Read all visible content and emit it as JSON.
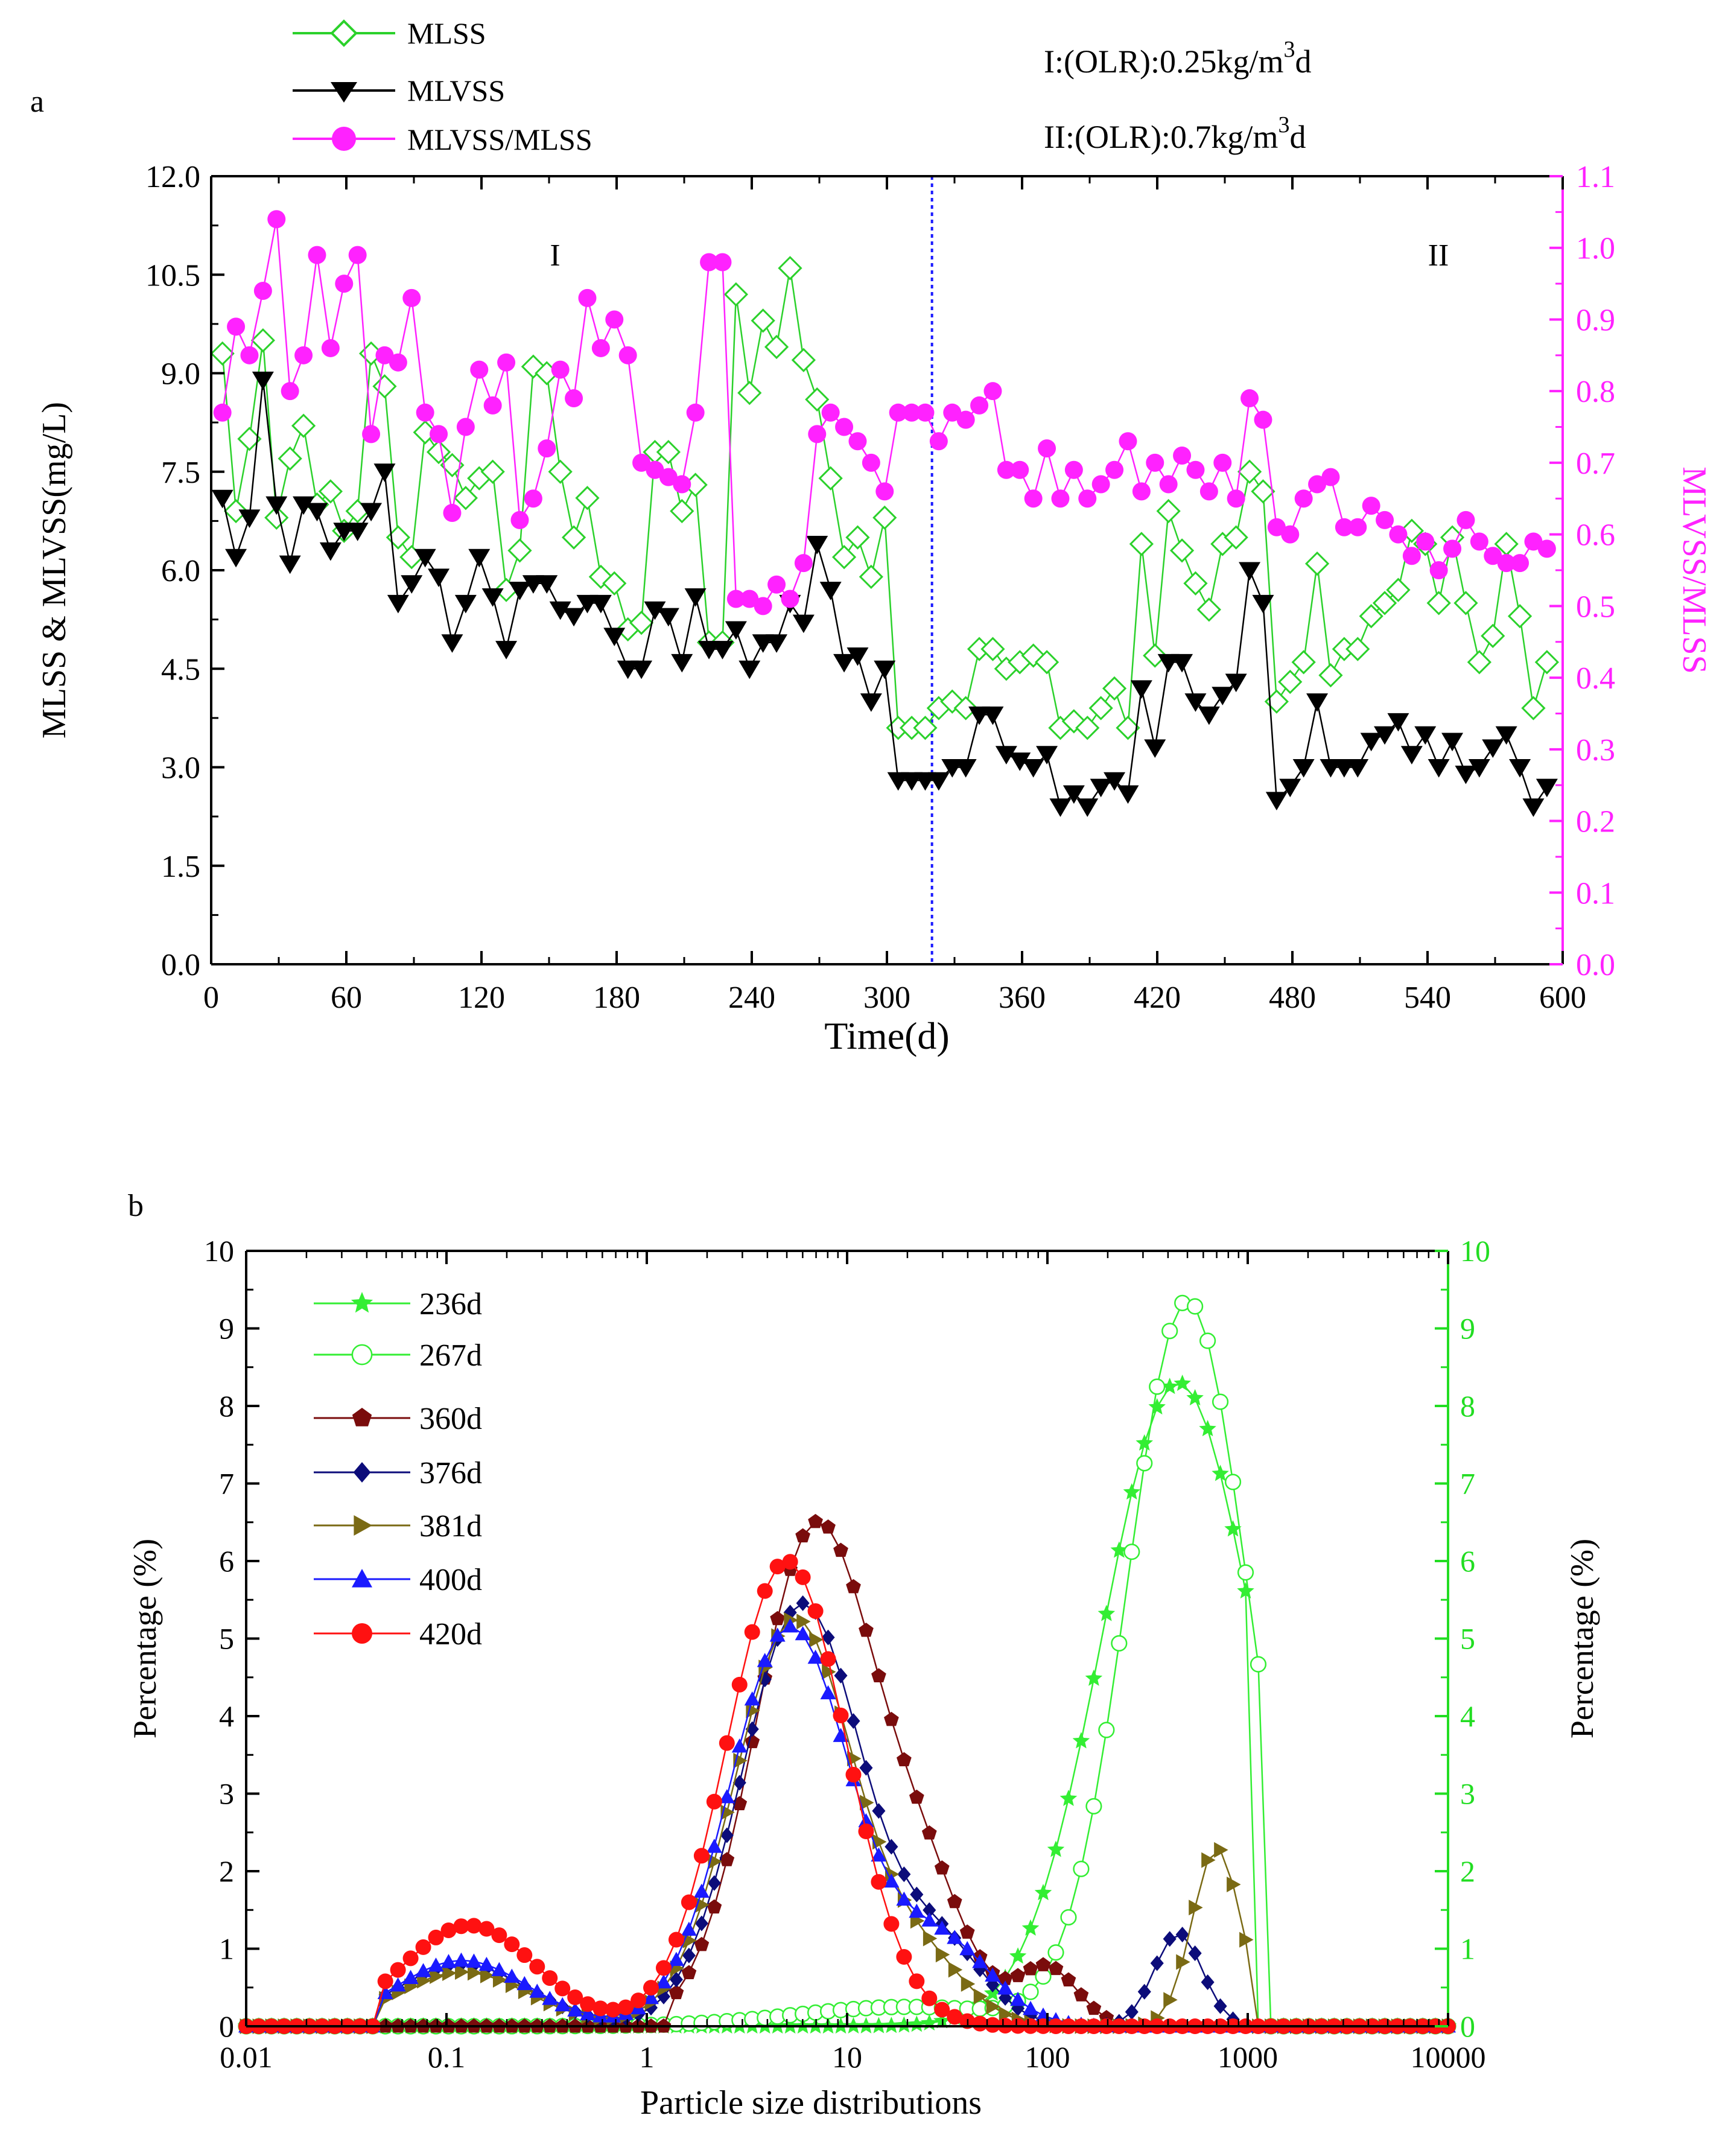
{
  "colors": {
    "mlss": "#2bd12b",
    "mlvss": "#000000",
    "ratio": "#ff22ff",
    "divider": "#1a1aff",
    "right_axis_b": "#22dd22",
    "d236": "#33ee33",
    "d267": "#33ee33",
    "d360": "#7a0c0c",
    "d376": "#0c0c7a",
    "d381": "#7a6a14",
    "d400": "#1a1aff",
    "d420": "#ff1111"
  },
  "chart_data": [
    {
      "type": "line",
      "panel_label": "a",
      "xlabel": "Time(d)",
      "ylabel": "MLSS & MLVSS(mg/L)",
      "y2label": "MLVSS/MLSS",
      "xlim": [
        0,
        600
      ],
      "ylim": [
        0,
        12
      ],
      "y2lim": [
        0,
        1.1
      ],
      "x_ticks": [
        "0",
        "60",
        "120",
        "180",
        "240",
        "300",
        "360",
        "420",
        "480",
        "540",
        "600"
      ],
      "y_ticks": [
        "0.0",
        "1.5",
        "3.0",
        "4.5",
        "6.0",
        "7.5",
        "9.0",
        "10.5",
        "12.0"
      ],
      "y2_ticks": [
        "0.0",
        "0.1",
        "0.2",
        "0.3",
        "0.4",
        "0.5",
        "0.6",
        "0.7",
        "0.8",
        "0.9",
        "1.0",
        "1.1"
      ],
      "phase_divider_x": 320,
      "phase_labels": [
        {
          "text": "I",
          "x": 150
        },
        {
          "text": "II",
          "x": 540
        }
      ],
      "annotations": [
        {
          "pre": "I:(OLR):0.25kg/m",
          "sup": "3",
          "post": "d"
        },
        {
          "pre": "II:(OLR):0.7kg/m",
          "sup": "3",
          "post": "d"
        }
      ],
      "series": [
        {
          "name": "MLSS",
          "axis": "left",
          "marker": "diamond-open",
          "color_key": "mlss",
          "x": [
            5,
            11,
            17,
            23,
            29,
            35,
            41,
            47,
            53,
            59,
            65,
            71,
            77,
            83,
            89,
            95,
            101,
            107,
            113,
            119,
            125,
            131,
            137,
            143,
            149,
            155,
            161,
            167,
            173,
            179,
            185,
            191,
            197,
            203,
            209,
            215,
            221,
            227,
            233,
            239,
            245,
            251,
            257,
            263,
            269,
            275,
            281,
            287,
            293,
            299,
            305,
            311,
            317,
            323,
            329,
            335,
            341,
            347,
            353,
            359,
            365,
            371,
            377,
            383,
            389,
            395,
            401,
            407,
            413,
            419,
            425,
            431,
            437,
            443,
            449,
            455,
            461,
            467,
            473,
            479,
            485,
            491,
            497,
            503,
            509,
            515,
            521,
            527,
            533,
            539,
            545,
            551,
            557,
            563,
            569,
            575,
            581,
            587,
            593
          ],
          "values": [
            9.3,
            6.9,
            8.0,
            9.5,
            6.8,
            7.7,
            8.2,
            7.0,
            7.2,
            6.6,
            6.9,
            9.3,
            8.8,
            6.5,
            6.2,
            8.1,
            7.8,
            7.6,
            7.1,
            7.4,
            7.5,
            5.7,
            6.3,
            9.1,
            9.0,
            7.5,
            6.5,
            7.1,
            5.9,
            5.8,
            5.1,
            5.2,
            7.8,
            7.8,
            6.9,
            7.3,
            4.9,
            4.9,
            10.2,
            8.7,
            9.8,
            9.4,
            10.6,
            9.2,
            8.6,
            7.4,
            6.2,
            6.5,
            5.9,
            6.8,
            3.6,
            3.6,
            3.6,
            3.9,
            4.0,
            3.9,
            4.8,
            4.8,
            4.5,
            4.6,
            4.7,
            4.6,
            3.6,
            3.7,
            3.6,
            3.9,
            4.2,
            3.6,
            6.4,
            4.7,
            6.9,
            6.3,
            5.8,
            5.4,
            6.4,
            6.5,
            7.5,
            7.2,
            4.0,
            4.3,
            4.6,
            6.1,
            4.4,
            4.8,
            4.8,
            5.3,
            5.5,
            5.7,
            6.6,
            6.4,
            5.5,
            6.5,
            5.5,
            4.6,
            5.0,
            6.4,
            5.3,
            3.9,
            4.6
          ]
        },
        {
          "name": "MLVSS",
          "axis": "left",
          "marker": "triangle-down",
          "color_key": "mlvss",
          "x": [
            5,
            11,
            17,
            23,
            29,
            35,
            41,
            47,
            53,
            59,
            65,
            71,
            77,
            83,
            89,
            95,
            101,
            107,
            113,
            119,
            125,
            131,
            137,
            143,
            149,
            155,
            161,
            167,
            173,
            179,
            185,
            191,
            197,
            203,
            209,
            215,
            221,
            227,
            233,
            239,
            245,
            251,
            257,
            263,
            269,
            275,
            281,
            287,
            293,
            299,
            305,
            311,
            317,
            323,
            329,
            335,
            341,
            347,
            353,
            359,
            365,
            371,
            377,
            383,
            389,
            395,
            401,
            407,
            413,
            419,
            425,
            431,
            437,
            443,
            449,
            455,
            461,
            467,
            473,
            479,
            485,
            491,
            497,
            503,
            509,
            515,
            521,
            527,
            533,
            539,
            545,
            551,
            557,
            563,
            569,
            575,
            581,
            587,
            593
          ],
          "values": [
            7.1,
            6.2,
            6.8,
            8.9,
            7.0,
            6.1,
            7.0,
            6.9,
            6.3,
            6.6,
            6.6,
            6.9,
            7.5,
            5.5,
            5.8,
            6.2,
            5.9,
            4.9,
            5.5,
            6.2,
            5.6,
            4.8,
            5.7,
            5.8,
            5.8,
            5.4,
            5.3,
            5.5,
            5.5,
            5.0,
            4.5,
            4.5,
            5.4,
            5.3,
            4.6,
            5.6,
            4.8,
            4.8,
            5.1,
            4.5,
            4.9,
            4.9,
            5.5,
            5.2,
            6.4,
            5.7,
            4.6,
            4.7,
            4.0,
            4.5,
            2.8,
            2.8,
            2.8,
            2.8,
            3.0,
            3.0,
            3.8,
            3.8,
            3.2,
            3.1,
            3.0,
            3.2,
            2.4,
            2.6,
            2.4,
            2.7,
            2.8,
            2.6,
            4.2,
            3.3,
            4.6,
            4.6,
            4.0,
            3.8,
            4.1,
            4.3,
            6.0,
            5.5,
            2.5,
            2.7,
            3.0,
            4.0,
            3.0,
            3.0,
            3.0,
            3.4,
            3.5,
            3.7,
            3.2,
            3.5,
            3.0,
            3.4,
            2.9,
            3.0,
            3.3,
            3.5,
            3.0,
            2.4,
            2.7
          ]
        },
        {
          "name": "MLVSS/MLSS",
          "axis": "right",
          "marker": "circle",
          "color_key": "ratio",
          "x": [
            5,
            11,
            17,
            23,
            29,
            35,
            41,
            47,
            53,
            59,
            65,
            71,
            77,
            83,
            89,
            95,
            101,
            107,
            113,
            119,
            125,
            131,
            137,
            143,
            149,
            155,
            161,
            167,
            173,
            179,
            185,
            191,
            197,
            203,
            209,
            215,
            221,
            227,
            233,
            239,
            245,
            251,
            257,
            263,
            269,
            275,
            281,
            287,
            293,
            299,
            305,
            311,
            317,
            323,
            329,
            335,
            341,
            347,
            353,
            359,
            365,
            371,
            377,
            383,
            389,
            395,
            401,
            407,
            413,
            419,
            425,
            431,
            437,
            443,
            449,
            455,
            461,
            467,
            473,
            479,
            485,
            491,
            497,
            503,
            509,
            515,
            521,
            527,
            533,
            539,
            545,
            551,
            557,
            563,
            569,
            575,
            581,
            587,
            593
          ],
          "values": [
            0.77,
            0.89,
            0.85,
            0.94,
            1.04,
            0.8,
            0.85,
            0.99,
            0.86,
            0.95,
            0.99,
            0.74,
            0.85,
            0.84,
            0.93,
            0.77,
            0.74,
            0.63,
            0.75,
            0.83,
            0.78,
            0.84,
            0.62,
            0.65,
            0.72,
            0.83,
            0.79,
            0.93,
            0.86,
            0.9,
            0.85,
            0.7,
            0.69,
            0.68,
            0.67,
            0.77,
            0.98,
            0.98,
            0.51,
            0.51,
            0.5,
            0.53,
            0.51,
            0.56,
            0.74,
            0.77,
            0.75,
            0.73,
            0.7,
            0.66,
            0.77,
            0.77,
            0.77,
            0.73,
            0.77,
            0.76,
            0.78,
            0.8,
            0.69,
            0.69,
            0.65,
            0.72,
            0.65,
            0.69,
            0.65,
            0.67,
            0.69,
            0.73,
            0.66,
            0.7,
            0.67,
            0.71,
            0.69,
            0.66,
            0.7,
            0.65,
            0.79,
            0.76,
            0.61,
            0.6,
            0.65,
            0.67,
            0.68,
            0.61,
            0.61,
            0.64,
            0.62,
            0.6,
            0.57,
            0.59,
            0.55,
            0.58,
            0.62,
            0.59,
            0.57,
            0.56,
            0.56,
            0.59,
            0.58
          ]
        }
      ]
    },
    {
      "type": "line",
      "panel_label": "b",
      "xlabel": "Particle size distributions",
      "ylabel": "Percentage (%)",
      "y2label": "Percentage (%)",
      "x_scale": "log",
      "xlim": [
        0.01,
        10000
      ],
      "ylim": [
        0,
        10
      ],
      "y2lim": [
        0,
        10
      ],
      "x_ticks": [
        "0.01",
        "0.1",
        "1",
        "10",
        "100",
        "1000",
        "10000"
      ],
      "y_ticks": [
        "0",
        "1",
        "2",
        "3",
        "4",
        "5",
        "6",
        "7",
        "8",
        "9",
        "10"
      ],
      "y2_ticks": [
        "0",
        "1",
        "2",
        "3",
        "4",
        "5",
        "6",
        "7",
        "8",
        "9",
        "10"
      ],
      "series": [
        {
          "name": "236d",
          "axis": "right",
          "marker": "star",
          "color_key": "d236",
          "mode": "gauss",
          "bg": [
            0.0
          ],
          "peaks": [
            [
              450,
              8.3,
              0.38
            ]
          ],
          "cutoff": 1100
        },
        {
          "name": "267d",
          "axis": "right",
          "marker": "circle-open",
          "color_key": "d267",
          "mode": "gauss",
          "bg": [
            0.0
          ],
          "peaks": [
            [
              500,
              9.35,
              0.3
            ],
            [
              20,
              0.25,
              0.55
            ]
          ],
          "cutoff": 1200
        },
        {
          "name": "360d",
          "axis": "left",
          "marker": "pentagon",
          "color_key": "d360",
          "mode": "gauss",
          "bg": [
            0.0
          ],
          "peaks": [
            [
              7,
              6.45,
              0.3
            ],
            [
              25,
              1.4,
              0.22
            ],
            [
              100,
              0.75,
              0.15
            ]
          ],
          "lower": 1.3,
          "cutoff": 220
        },
        {
          "name": "376d",
          "axis": "left",
          "marker": "diamond",
          "color_key": "d376",
          "mode": "gauss",
          "bg": [
            0.0
          ],
          "peaks": [
            [
              0.12,
              0.8,
              0.33
            ],
            [
              6,
              5.45,
              0.3
            ],
            [
              30,
              0.95,
              0.22
            ],
            [
              450,
              1.2,
              0.12
            ]
          ],
          "lower": 0.045,
          "cutoff": 900
        },
        {
          "name": "381d",
          "axis": "left",
          "marker": "triangle-right",
          "color_key": "d381",
          "mode": "gauss",
          "bg": [
            0.0
          ],
          "peaks": [
            [
              0.12,
              0.7,
              0.33
            ],
            [
              5.5,
              5.25,
              0.3
            ],
            [
              25,
              0.7,
              0.22
            ],
            [
              700,
              2.3,
              0.12
            ]
          ],
          "lower": 0.045,
          "cutoff": 1050
        },
        {
          "name": "400d",
          "axis": "left",
          "marker": "triangle-up",
          "color_key": "d400",
          "mode": "gauss",
          "bg": [
            0.0
          ],
          "peaks": [
            [
              0.12,
              0.85,
              0.33
            ],
            [
              5.2,
              5.15,
              0.3
            ],
            [
              30,
              1.05,
              0.25
            ]
          ],
          "lower": 0.045,
          "cutoff": 300
        },
        {
          "name": "420d",
          "axis": "left",
          "marker": "circle",
          "color_key": "d420",
          "mode": "gauss",
          "bg": [
            0.0
          ],
          "peaks": [
            [
              0.13,
              1.3,
              0.33
            ],
            [
              5,
              6.0,
              0.3
            ]
          ],
          "lower": 0.045,
          "cutoff": 400
        }
      ]
    }
  ]
}
